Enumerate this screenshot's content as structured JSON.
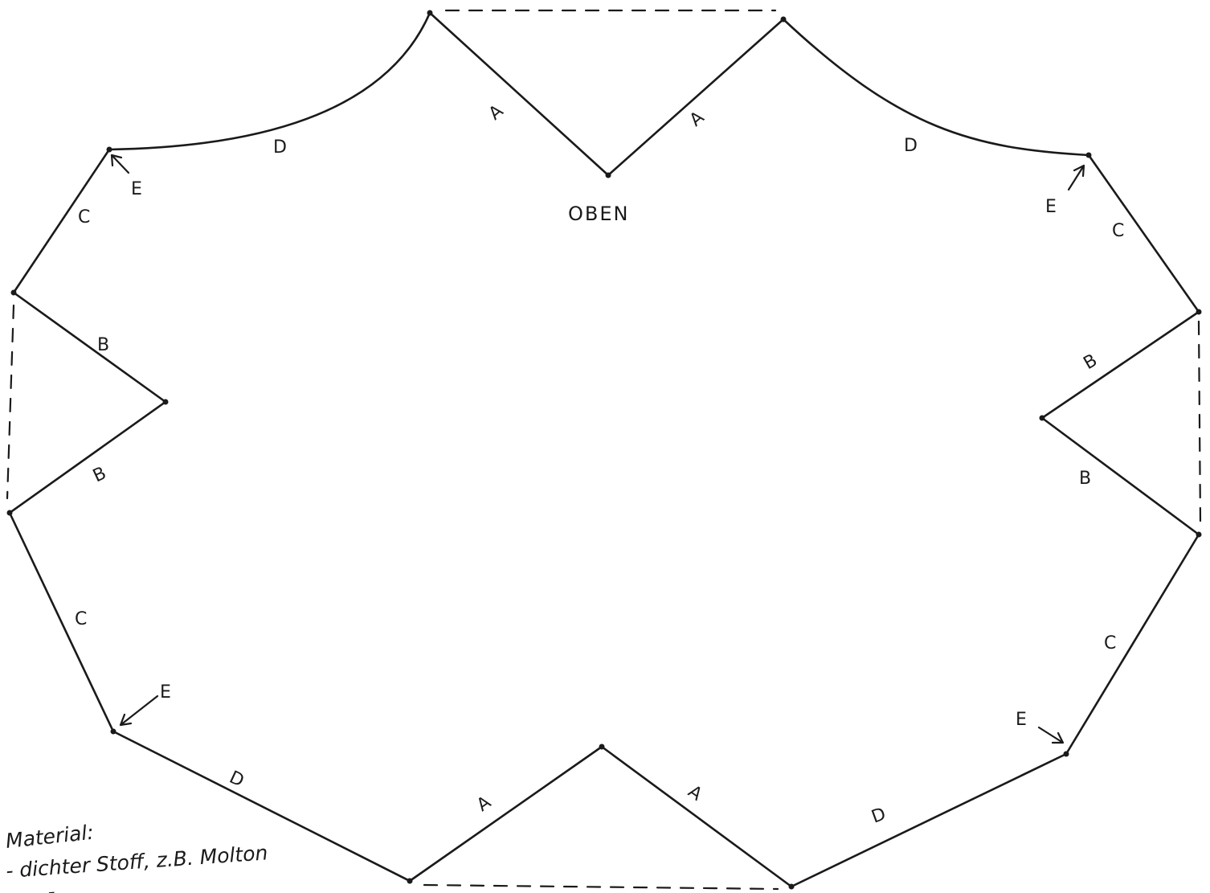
{
  "diagram": {
    "top_label": "OBEN",
    "edge_labels": {
      "a": "A",
      "b": "B",
      "c": "C",
      "d": "D",
      "e": "E"
    }
  },
  "notes": {
    "heading": "Material:",
    "line1": "- dichter Stoff, z.B. Molton",
    "line2": "- ..."
  }
}
